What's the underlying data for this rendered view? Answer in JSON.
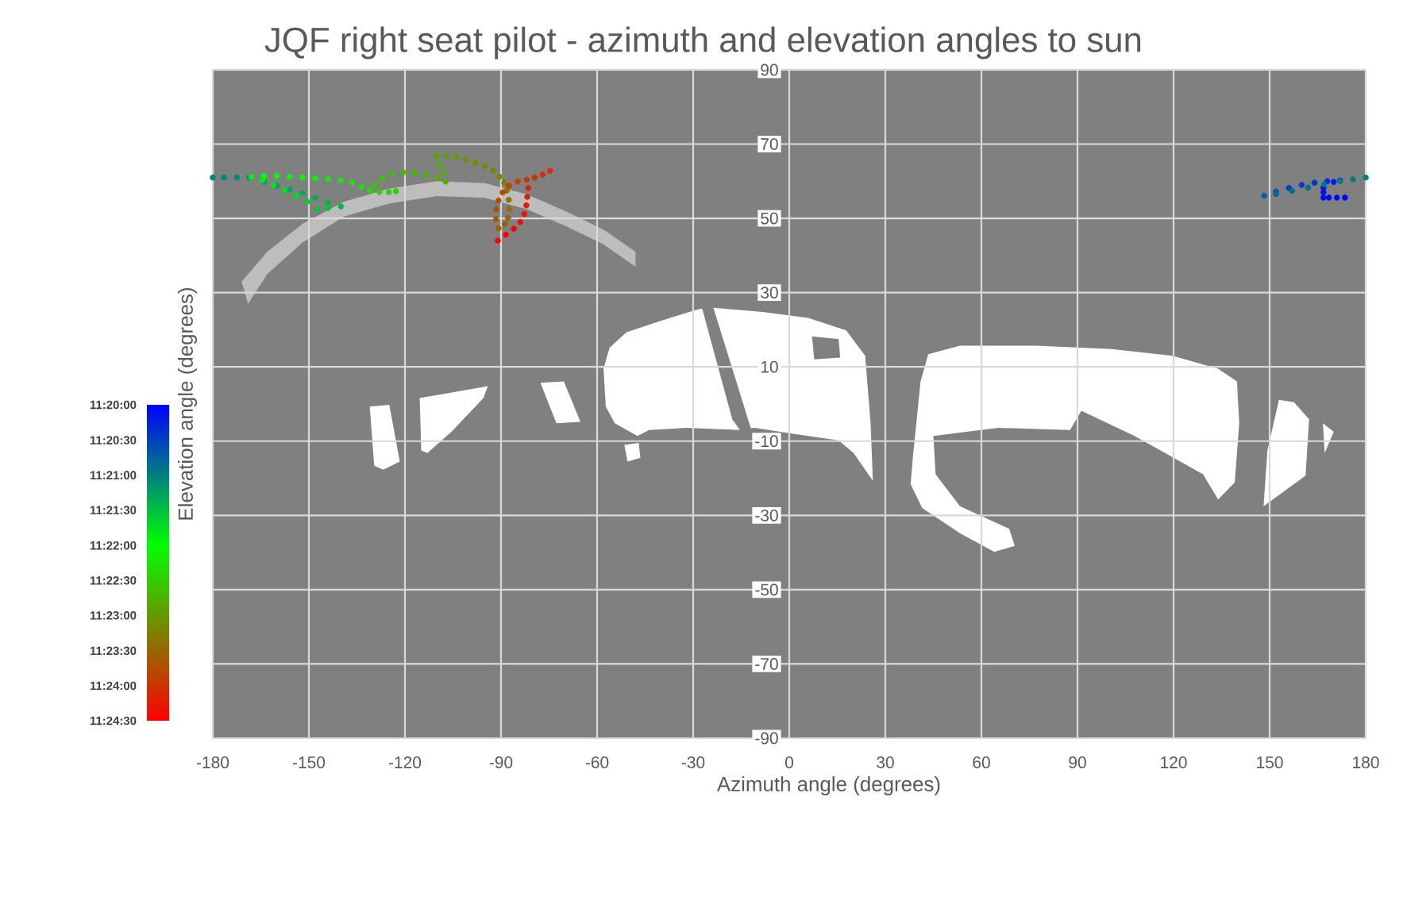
{
  "chart_data": {
    "type": "scatter",
    "title": "JQF right seat pilot - azimuth and elevation angles to sun",
    "xlabel": "Azimuth angle (degrees)",
    "ylabel": "Elevation angle (degrees)",
    "x": [
      173.5,
      171,
      168.5,
      166.8,
      166.8,
      166.8,
      170,
      172,
      168,
      164,
      160,
      156,
      152,
      148.3,
      152,
      157,
      162,
      167,
      172,
      176,
      180,
      -180,
      -176.5,
      -172.5,
      -168.7,
      -164,
      -160,
      -156,
      -152,
      -148,
      -144,
      -140,
      -144,
      -147.3,
      -150.5,
      -154,
      -157.5,
      -161,
      -164.5,
      -168,
      -164,
      -160,
      -156,
      -152,
      -148,
      -144,
      -140,
      -136.5,
      -133.5,
      -131,
      -128,
      -125,
      -122.8,
      -129.5,
      -127,
      -124,
      -120.5,
      -117,
      -113.5,
      -110,
      -107.3,
      -108.2,
      -109.3,
      -110.2,
      -107,
      -104,
      -101,
      -98,
      -95,
      -92.5,
      -90.5,
      -89,
      -88.2,
      -87.6,
      -87.4,
      -87.8,
      -88.8,
      -90.8,
      -91.6,
      -91.5,
      -90.8,
      -89.5,
      -87.5,
      -84.8,
      -82,
      -79.5,
      -77,
      -74.7,
      -81.5,
      -81.8,
      -82.1,
      -82.7,
      -84,
      -86,
      -88.5,
      -91
    ],
    "values": [
      55.6,
      55.6,
      55.6,
      55.6,
      57,
      58.2,
      59.8,
      60.2,
      60,
      59.6,
      59,
      58.2,
      57.2,
      56.1,
      56.6,
      57.4,
      58.3,
      59.2,
      60,
      60.5,
      61,
      61,
      61,
      61,
      61,
      59.8,
      58.8,
      57.8,
      56.8,
      55.5,
      54.2,
      53.2,
      52.8,
      52.5,
      54.5,
      56,
      57.5,
      58.9,
      60.2,
      61.2,
      61.4,
      61.4,
      61.2,
      61,
      60.8,
      60.5,
      60.2,
      59.6,
      58.5,
      57.4,
      57.1,
      57.1,
      57.3,
      59,
      60.6,
      61.8,
      62.4,
      62.2,
      61.6,
      60.8,
      59.9,
      62.2,
      64.5,
      66.7,
      66.8,
      66.5,
      65.8,
      65,
      64,
      62.8,
      61.2,
      59.6,
      57.5,
      55,
      52.5,
      50.2,
      48.5,
      47.3,
      49.8,
      52.5,
      54.8,
      57,
      58.8,
      59.9,
      60.4,
      61,
      61.8,
      62.8,
      58.2,
      55.8,
      53.5,
      51.2,
      49,
      47.2,
      45.6,
      44
    ],
    "cvalues": [
      11.3333,
      11.3339,
      11.3344,
      11.335,
      11.3356,
      11.3361,
      11.3372,
      11.3378,
      11.3389,
      11.34,
      11.3411,
      11.3422,
      11.3439,
      11.3456,
      11.3464,
      11.3472,
      11.3481,
      11.3489,
      11.3494,
      11.3497,
      11.35,
      11.3503,
      11.3508,
      11.3514,
      11.3519,
      11.3528,
      11.3536,
      11.3544,
      11.3553,
      11.3561,
      11.3569,
      11.3578,
      11.3589,
      11.3597,
      11.3606,
      11.3614,
      11.3622,
      11.3631,
      11.3639,
      11.3647,
      11.3656,
      11.3664,
      11.3672,
      11.3681,
      11.3689,
      11.3697,
      11.3706,
      11.3714,
      11.3722,
      11.3731,
      11.3736,
      11.3742,
      11.3747,
      11.3756,
      11.3761,
      11.3767,
      11.3772,
      11.3778,
      11.3783,
      11.3789,
      11.3794,
      11.38,
      11.3806,
      11.3811,
      11.3819,
      11.3828,
      11.3836,
      11.3844,
      11.3853,
      11.3861,
      11.3869,
      11.3878,
      11.3886,
      11.3894,
      11.3903,
      11.3911,
      11.3919,
      11.3928,
      11.3936,
      11.3944,
      11.3953,
      11.3961,
      11.3969,
      11.3978,
      11.3986,
      11.3994,
      11.4003,
      11.4011,
      11.4028,
      11.4036,
      11.4044,
      11.4053,
      11.4061,
      11.4069,
      11.4078,
      11.4083
    ],
    "clim": [
      11.3333,
      11.4083
    ],
    "cticks": [
      {
        "value": 11.3333,
        "label": "11:20:00"
      },
      {
        "value": 11.3417,
        "label": "11:20:30"
      },
      {
        "value": 11.35,
        "label": "11:21:00"
      },
      {
        "value": 11.3583,
        "label": "11:21:30"
      },
      {
        "value": 11.3667,
        "label": "11:22:00"
      },
      {
        "value": 11.375,
        "label": "11:22:30"
      },
      {
        "value": 11.3833,
        "label": "11:23:00"
      },
      {
        "value": 11.3917,
        "label": "11:23:30"
      },
      {
        "value": 11.4,
        "label": "11:24:00"
      },
      {
        "value": 11.4083,
        "label": "11:24:30"
      }
    ],
    "xlim": [
      -180,
      180
    ],
    "xticks": [
      -180,
      -150,
      -120,
      -90,
      -60,
      -30,
      0,
      30,
      60,
      90,
      120,
      150,
      180
    ],
    "ylim": [
      -90,
      90
    ],
    "yticks": [
      -90,
      -70,
      -50,
      -30,
      -10,
      10,
      30,
      50,
      70,
      90
    ],
    "grid": true,
    "marker": "circle"
  }
}
